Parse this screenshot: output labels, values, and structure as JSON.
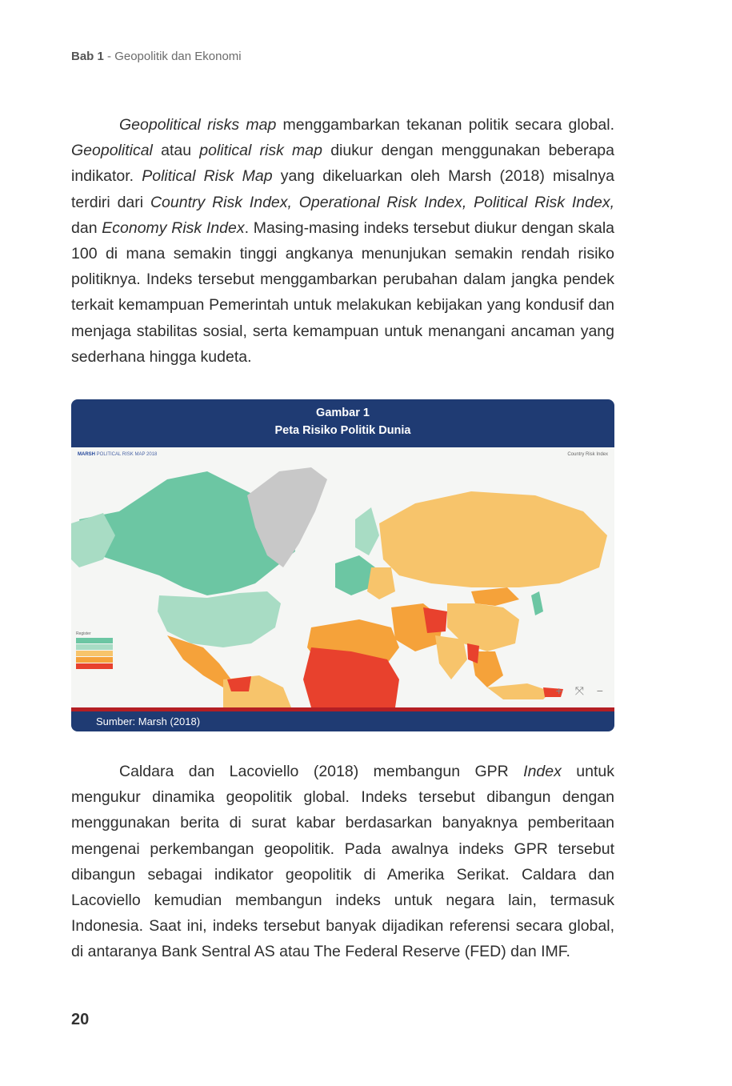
{
  "running_head": {
    "chapter": "Bab 1",
    "separator": " - ",
    "title": "Geopolitik dan Ekonomi"
  },
  "para1": {
    "s1_i": "Geopolitical risks map",
    "s1": " menggambarkan tekanan politik secara global. ",
    "s2_i": "Geopolitical",
    "s2": " atau ",
    "s3_i": "political risk map",
    "s3": " diukur dengan menggunakan beberapa indikator. ",
    "s4_i": "Political Risk Map",
    "s4": " yang dikeluarkan oleh Marsh (2018) misalnya terdiri dari ",
    "s5_i": "Country Risk Index, Operational Risk Index, Political Risk Index,",
    "s5": " dan ",
    "s6_i": "Economy Risk Index",
    "s6": ". Masing-masing indeks tersebut diukur dengan skala 100 di mana semakin tinggi angkanya menunjukan semakin rendah risiko politiknya. Indeks tersebut menggambarkan perubahan dalam jangka pendek terkait kemampuan Pemerintah untuk melakukan kebijakan yang kondusif dan menjaga stabilitas sosial, serta kemampuan untuk menangani ancaman yang sederhana hingga kudeta."
  },
  "figure": {
    "label": "Gambar 1",
    "title": "Peta Risiko Politik Dunia",
    "source": "Sumber: Marsh (2018)",
    "map": {
      "brand": "MARSH",
      "header_text": "POLITICAL RISK MAP 2018",
      "selector_text": "Country Risk Index",
      "legend_title": "Register",
      "colors": {
        "low_risk": "#6cc6a3",
        "low_mid": "#a8dcc4",
        "mid": "#f7c46b",
        "mid_high": "#f5a23a",
        "high": "#e8412d",
        "no_data": "#c8c8c8",
        "ocean": "#f5f6f4"
      },
      "zoom_controls": "+ ⤧ −"
    }
  },
  "para2": {
    "s1": "Caldara dan Lacoviello (2018) membangun GPR ",
    "s1_i": "Index",
    "s2": " untuk mengukur dinamika geopolitik global. Indeks tersebut dibangun dengan menggunakan berita di surat kabar berdasarkan banyaknya pemberitaan mengenai perkembangan geopolitik. Pada awalnya indeks GPR tersebut dibangun sebagai indikator geopolitik di Amerika Serikat. Caldara dan Lacoviello kemudian membangun indeks untuk negara lain, termasuk Indonesia. Saat ini, indeks tersebut banyak dijadikan referensi secara global, di antaranya Bank Sentral AS atau The Federal Reserve (FED) dan IMF."
  },
  "page_number": "20"
}
